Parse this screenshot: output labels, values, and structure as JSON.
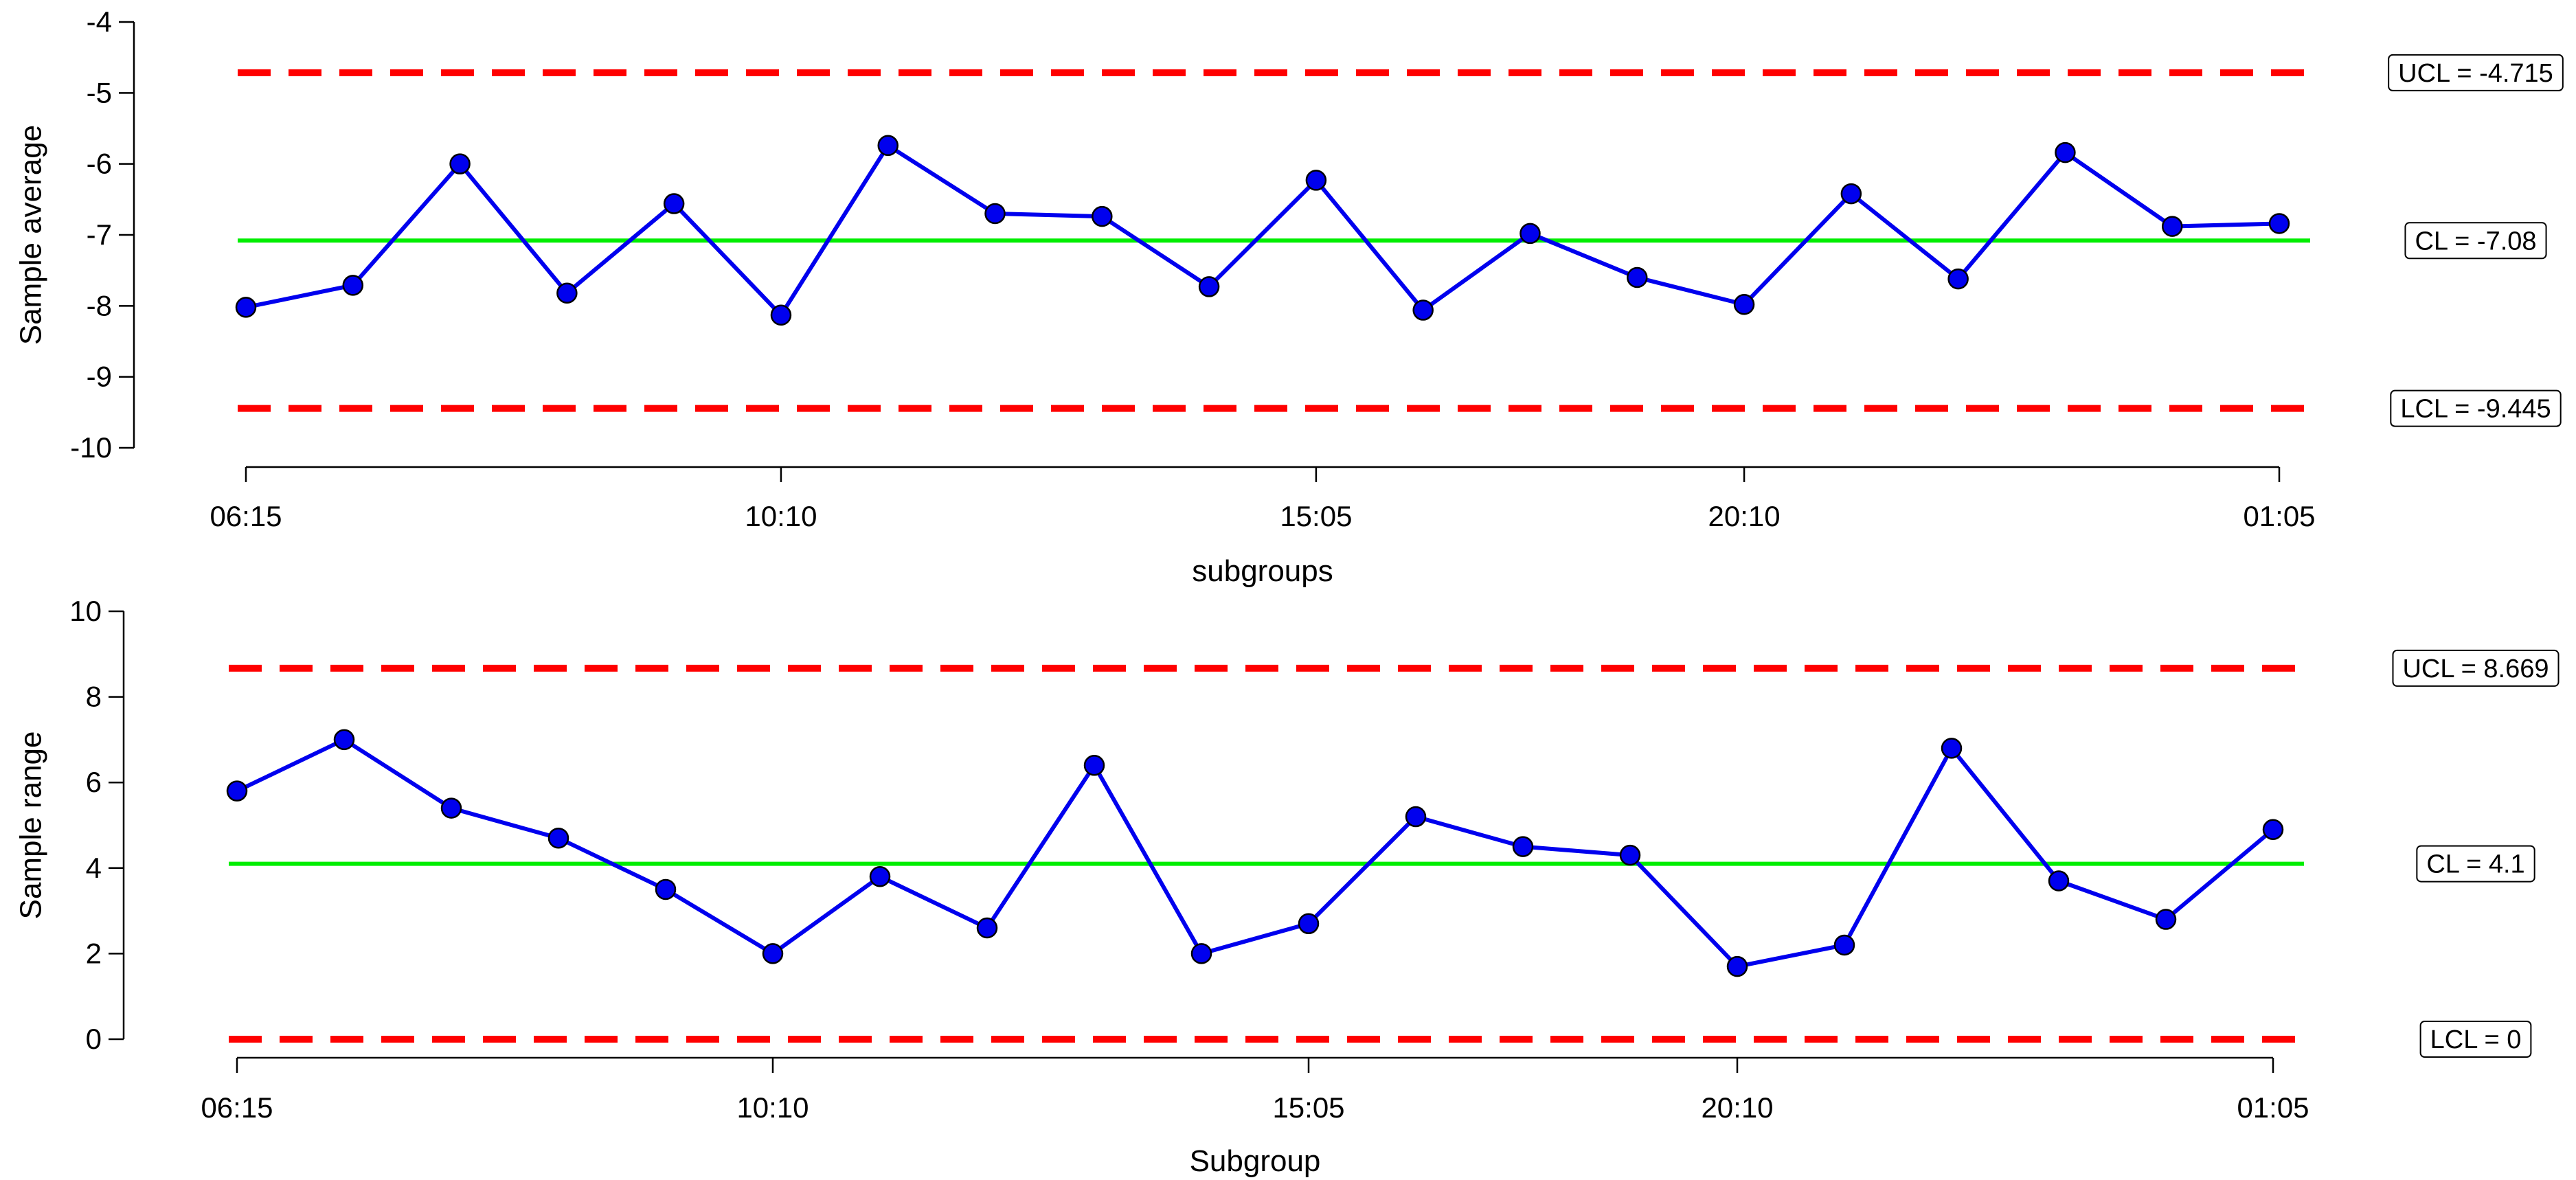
{
  "chart_data": [
    {
      "type": "line",
      "ylabel": "Sample average",
      "xlabel": "subgroups",
      "ylim": [
        -10,
        -4
      ],
      "yticks": [
        -4,
        -5,
        -6,
        -7,
        -8,
        -9,
        -10
      ],
      "x_tick_labels": [
        "06:15",
        "10:10",
        "15:05",
        "20:10",
        "01:05"
      ],
      "series": [
        {
          "values": [
            -8.02,
            -7.71,
            -6.0,
            -7.82,
            -6.56,
            -8.13,
            -5.74,
            -6.7,
            -6.74,
            -7.73,
            -6.23,
            -8.06,
            -6.98,
            -7.6,
            -7.98,
            -6.42,
            -7.62,
            -5.84,
            -6.88,
            -6.84
          ]
        }
      ],
      "limits": {
        "ucl": {
          "value": -4.715,
          "label": "UCL = -4.715"
        },
        "cl": {
          "value": -7.08,
          "label": "CL = -7.08"
        },
        "lcl": {
          "value": -9.445,
          "label": "LCL = -9.445"
        }
      },
      "colors": {
        "series": "#0000ee",
        "cl": "#00ee00",
        "limits": "#ff0000"
      }
    },
    {
      "type": "line",
      "ylabel": "Sample range",
      "xlabel": "Subgroup",
      "ylim": [
        0,
        10
      ],
      "yticks": [
        10,
        8,
        6,
        4,
        2,
        0
      ],
      "x_tick_labels": [
        "06:15",
        "10:10",
        "15:05",
        "20:10",
        "01:05"
      ],
      "series": [
        {
          "values": [
            5.8,
            7.0,
            5.4,
            4.7,
            3.5,
            2.0,
            3.8,
            2.6,
            6.4,
            2.0,
            2.7,
            5.2,
            4.5,
            4.3,
            1.7,
            2.2,
            6.8,
            3.7,
            2.8,
            4.9
          ]
        }
      ],
      "limits": {
        "ucl": {
          "value": 8.669,
          "label": "UCL = 8.669"
        },
        "cl": {
          "value": 4.1,
          "label": "CL = 4.1"
        },
        "lcl": {
          "value": 0,
          "label": "LCL = 0"
        }
      },
      "colors": {
        "series": "#0000ee",
        "cl": "#00ee00",
        "limits": "#ff0000"
      }
    }
  ]
}
